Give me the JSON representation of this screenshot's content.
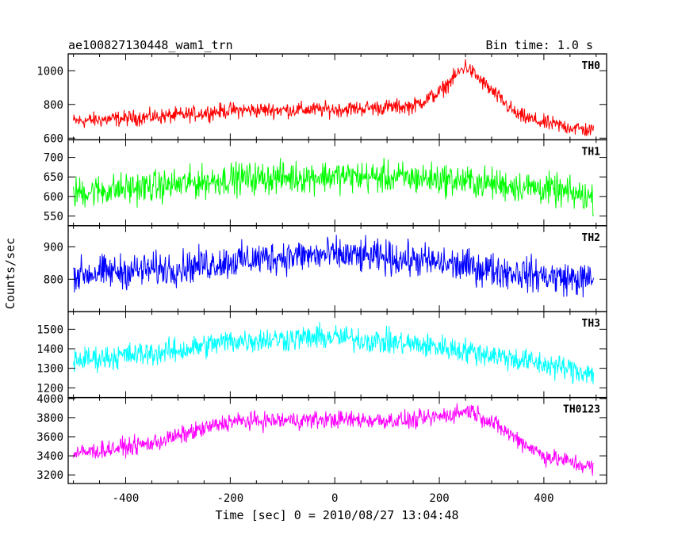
{
  "header": {
    "title": "ae100827130448_wam1_trn",
    "bin_time": "Bin time: 1.0 s"
  },
  "chart_data": {
    "type": "line",
    "title": "ae100827130448_wam1_trn",
    "xlabel": "Time [sec] 0 = 2010/08/27 13:04:48",
    "ylabel": "Counts/sec",
    "xlim": [
      -510,
      520
    ],
    "x_ticks": [
      -400,
      -200,
      0,
      200,
      400
    ],
    "panels": [
      {
        "name": "TH0",
        "color": "#ff0000",
        "ylim": [
          590,
          1100
        ],
        "y_ticks": [
          600,
          800,
          1000
        ],
        "profile": [
          [
            -500,
            700
          ],
          [
            -300,
            735
          ],
          [
            -200,
            765
          ],
          [
            0,
            770
          ],
          [
            150,
            790
          ],
          [
            200,
            870
          ],
          [
            250,
            1030
          ],
          [
            300,
            880
          ],
          [
            350,
            735
          ],
          [
            400,
            690
          ],
          [
            500,
            640
          ]
        ],
        "noise": 40
      },
      {
        "name": "TH1",
        "color": "#00ff00",
        "ylim": [
          525,
          745
        ],
        "y_ticks": [
          550,
          600,
          650,
          700
        ],
        "profile": [
          [
            -500,
            610
          ],
          [
            -300,
            630
          ],
          [
            -200,
            645
          ],
          [
            0,
            652
          ],
          [
            200,
            645
          ],
          [
            400,
            620
          ],
          [
            500,
            595
          ]
        ],
        "noise": 35
      },
      {
        "name": "TH2",
        "color": "#0000ff",
        "ylim": [
          700,
          965
        ],
        "y_ticks": [
          800,
          900
        ],
        "profile": [
          [
            -500,
            815
          ],
          [
            -300,
            835
          ],
          [
            -200,
            855
          ],
          [
            -100,
            870
          ],
          [
            0,
            875
          ],
          [
            150,
            860
          ],
          [
            300,
            830
          ],
          [
            400,
            810
          ],
          [
            500,
            795
          ]
        ],
        "noise": 45
      },
      {
        "name": "TH3",
        "color": "#00ffff",
        "ylim": [
          1150,
          1590
        ],
        "y_ticks": [
          1200,
          1300,
          1400,
          1500
        ],
        "profile": [
          [
            -500,
            1340
          ],
          [
            -300,
            1390
          ],
          [
            -200,
            1440
          ],
          [
            0,
            1460
          ],
          [
            100,
            1435
          ],
          [
            200,
            1410
          ],
          [
            300,
            1370
          ],
          [
            400,
            1320
          ],
          [
            500,
            1270
          ]
        ],
        "noise": 55
      },
      {
        "name": "TH0123",
        "color": "#ff00ff",
        "ylim": [
          3110,
          4010
        ],
        "y_ticks": [
          3200,
          3400,
          3600,
          3800,
          4000
        ],
        "profile": [
          [
            -500,
            3420
          ],
          [
            -350,
            3530
          ],
          [
            -200,
            3760
          ],
          [
            0,
            3780
          ],
          [
            150,
            3770
          ],
          [
            200,
            3810
          ],
          [
            260,
            3880
          ],
          [
            300,
            3750
          ],
          [
            400,
            3400
          ],
          [
            500,
            3270
          ]
        ],
        "noise": 80
      }
    ]
  }
}
